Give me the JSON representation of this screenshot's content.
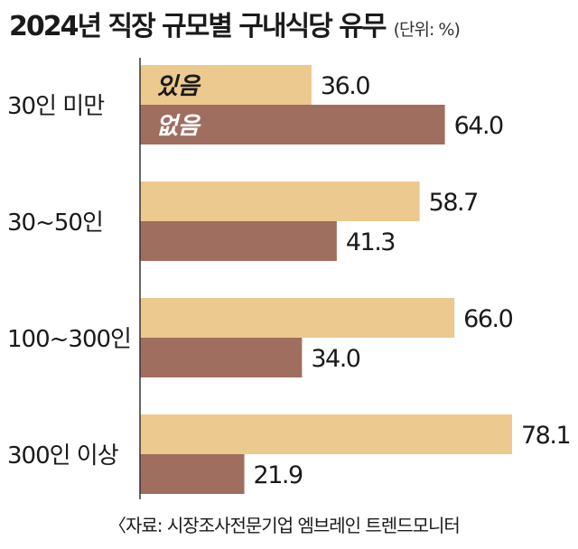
{
  "title": "2024년 직장 규모별 구내식당 유무",
  "unit": "(단위: %)",
  "source": "〈자료: 시장조사전문기업 엠브레인 트렌드모니터",
  "chart_data": {
    "type": "bar",
    "orientation": "horizontal",
    "title": "2024년 직장 규모별 구내식당 유무",
    "xlim": [
      0,
      80
    ],
    "grid": false,
    "legend": "inside-first-group",
    "categories": [
      "30인 미만",
      "30~50인",
      "100~300인",
      "300인 이상"
    ],
    "series": [
      {
        "name": "있음",
        "color": "#ecc98f",
        "values": [
          36.0,
          58.7,
          66.0,
          78.1
        ]
      },
      {
        "name": "없음",
        "color": "#a06e5f",
        "values": [
          64.0,
          41.3,
          34.0,
          21.9
        ]
      }
    ]
  }
}
